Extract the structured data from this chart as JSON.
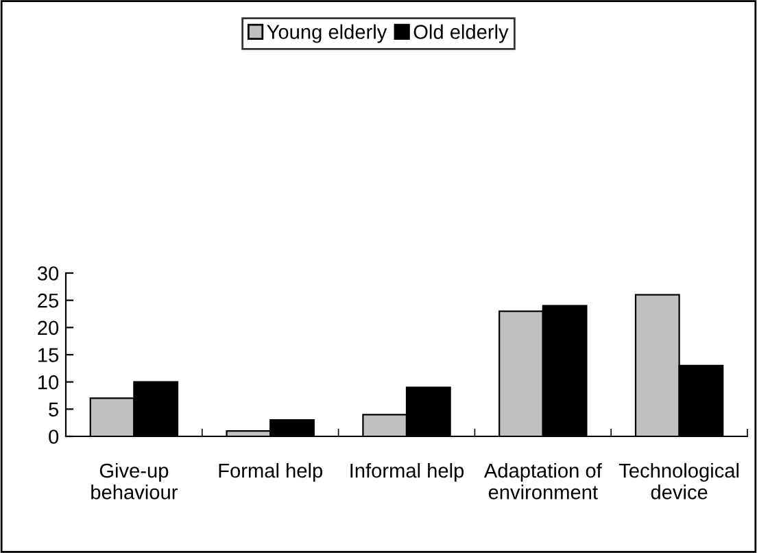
{
  "chart_data": {
    "type": "bar",
    "categories": [
      "Give-up\nbehaviour",
      "Formal help",
      "Informal help",
      "Adaptation of\nenvironment",
      "Technological\ndevice"
    ],
    "series": [
      {
        "name": "Young elderly",
        "color": "#c0c0c0",
        "values": [
          7,
          1,
          4,
          23,
          26
        ]
      },
      {
        "name": "Old elderly",
        "color": "#000000",
        "values": [
          10,
          3,
          9,
          24,
          13
        ]
      }
    ],
    "ylim": [
      0,
      30
    ],
    "yticks": [
      0,
      5,
      10,
      15,
      20,
      25,
      30
    ],
    "grid": false,
    "legend": "top"
  }
}
